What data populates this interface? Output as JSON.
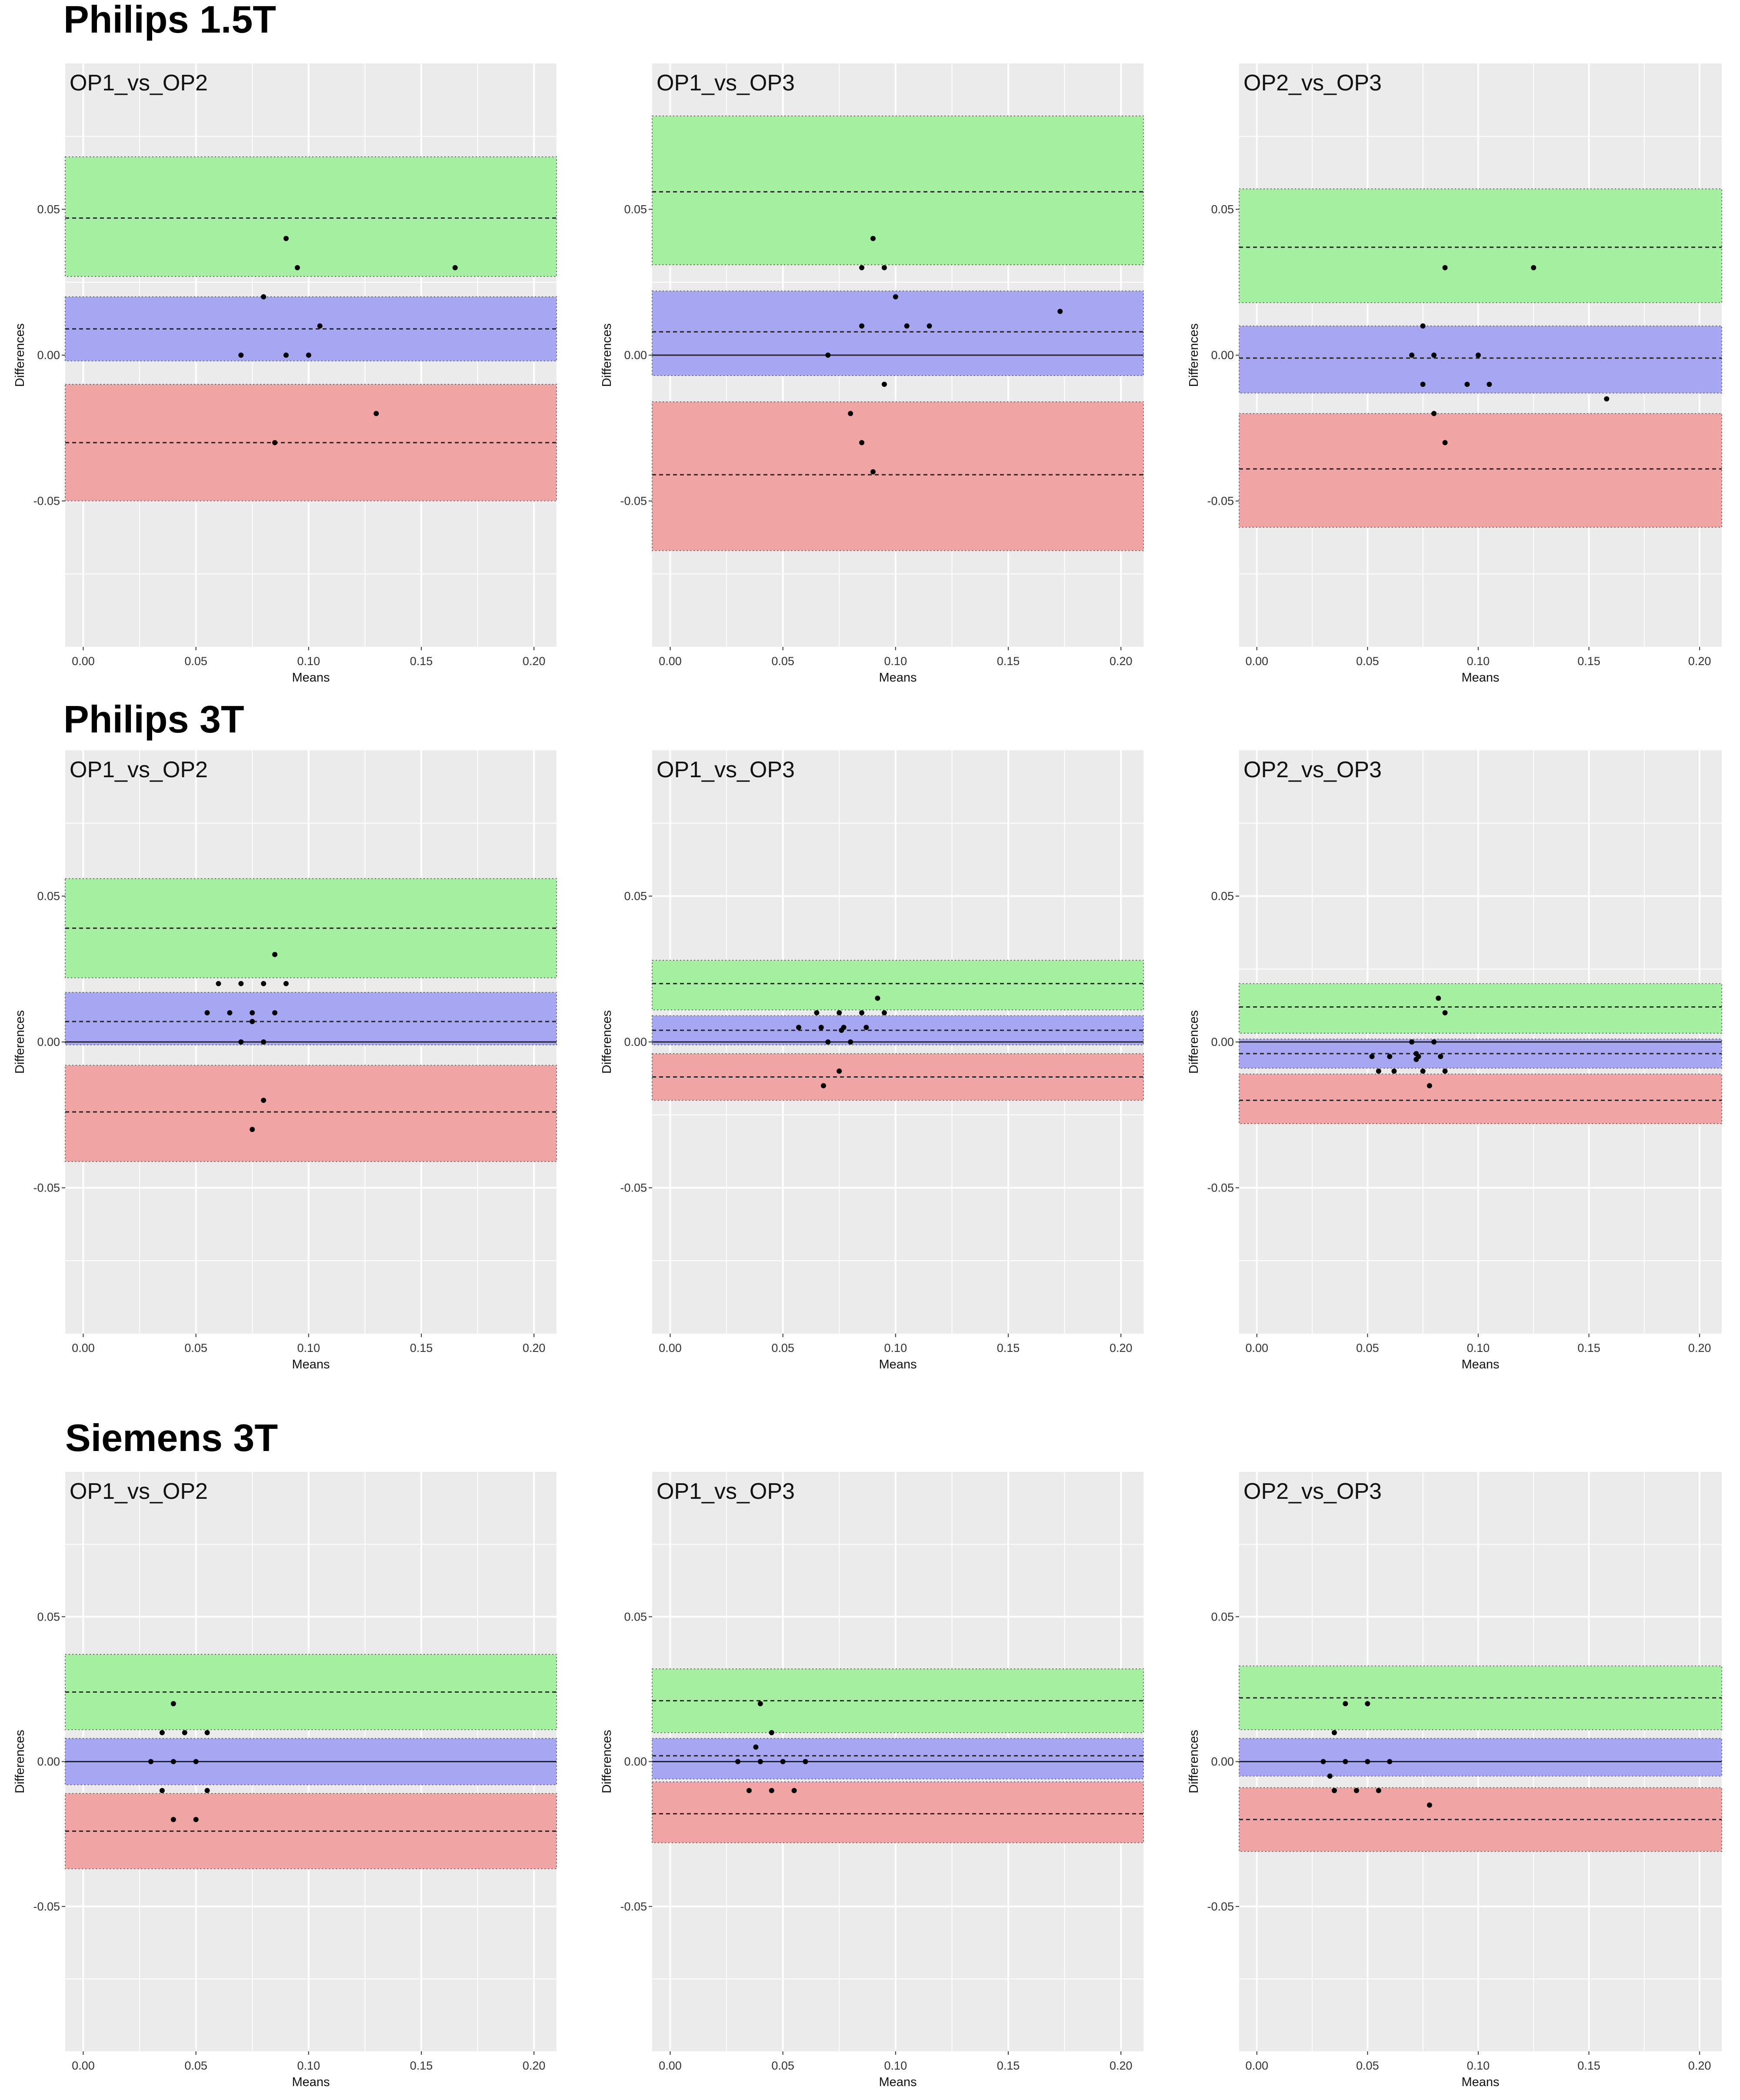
{
  "sections": [
    {
      "title": "Philips 1.5T"
    },
    {
      "title": "Philips 3T"
    },
    {
      "title": "Siemens 3T"
    }
  ],
  "colors": {
    "panel_bg": "#ebebeb",
    "grid": "#ffffff",
    "upper_band": "#a4f0a0",
    "mean_band": "#a6a6f2",
    "lower_band": "#f0a4a4",
    "point": "#000000"
  },
  "chart_data": [
    {
      "type": "scatter",
      "section": "Philips 1.5T",
      "title": "OP1_vs_OP2",
      "xlabel": "Means",
      "ylabel": "Differences",
      "xlim": [
        -0.008,
        0.21
      ],
      "ylim": [
        -0.1,
        0.1
      ],
      "xticks": [
        "0.00",
        "0.05",
        "0.10",
        "0.15",
        "0.20"
      ],
      "yticks": [
        "0.05",
        "0.00",
        "-0.05"
      ],
      "mean_band": [
        -0.002,
        0.02
      ],
      "mean_diff": 0.009,
      "upper_band": [
        0.027,
        0.068
      ],
      "upper_loa": 0.047,
      "lower_band": [
        -0.05,
        -0.01
      ],
      "lower_loa": -0.03,
      "zero_line": false,
      "points": {
        "x": [
          0.07,
          0.08,
          0.085,
          0.09,
          0.09,
          0.095,
          0.1,
          0.105,
          0.13,
          0.165
        ],
        "y": [
          0.0,
          0.02,
          -0.03,
          0.04,
          0.0,
          0.03,
          0.0,
          0.01,
          -0.02,
          0.03
        ]
      }
    },
    {
      "type": "scatter",
      "section": "Philips 1.5T",
      "title": "OP1_vs_OP3",
      "xlabel": "Means",
      "ylabel": "Differences",
      "xlim": [
        -0.008,
        0.21
      ],
      "ylim": [
        -0.1,
        0.1
      ],
      "xticks": [
        "0.00",
        "0.05",
        "0.10",
        "0.15",
        "0.20"
      ],
      "yticks": [
        "0.05",
        "0.00",
        "-0.05"
      ],
      "mean_band": [
        -0.007,
        0.022
      ],
      "mean_diff": 0.008,
      "upper_band": [
        0.031,
        0.082
      ],
      "upper_loa": 0.056,
      "lower_band": [
        -0.067,
        -0.016
      ],
      "lower_loa": -0.041,
      "zero_line": true,
      "points": {
        "x": [
          0.07,
          0.08,
          0.085,
          0.085,
          0.085,
          0.09,
          0.09,
          0.095,
          0.095,
          0.1,
          0.105,
          0.115,
          0.173
        ],
        "y": [
          0.0,
          -0.02,
          0.03,
          0.01,
          -0.03,
          0.04,
          -0.04,
          0.03,
          -0.01,
          0.02,
          0.01,
          0.01,
          0.015
        ]
      }
    },
    {
      "type": "scatter",
      "section": "Philips 1.5T",
      "title": "OP2_vs_OP3",
      "xlabel": "Means",
      "ylabel": "Differences",
      "xlim": [
        -0.008,
        0.21
      ],
      "ylim": [
        -0.1,
        0.1
      ],
      "xticks": [
        "0.00",
        "0.05",
        "0.10",
        "0.15",
        "0.20"
      ],
      "yticks": [
        "0.05",
        "0.00",
        "-0.05"
      ],
      "mean_band": [
        -0.013,
        0.01
      ],
      "mean_diff": -0.001,
      "upper_band": [
        0.018,
        0.057
      ],
      "upper_loa": 0.037,
      "lower_band": [
        -0.059,
        -0.02
      ],
      "lower_loa": -0.039,
      "zero_line": false,
      "points": {
        "x": [
          0.07,
          0.075,
          0.075,
          0.08,
          0.08,
          0.085,
          0.085,
          0.095,
          0.1,
          0.105,
          0.125,
          0.158
        ],
        "y": [
          0.0,
          0.01,
          -0.01,
          0.0,
          -0.02,
          0.03,
          -0.03,
          -0.01,
          0.0,
          -0.01,
          0.03,
          -0.015
        ]
      }
    },
    {
      "type": "scatter",
      "section": "Philips 3T",
      "title": "OP1_vs_OP2",
      "xlabel": "Means",
      "ylabel": "Differences",
      "xlim": [
        -0.008,
        0.21
      ],
      "ylim": [
        -0.1,
        0.1
      ],
      "xticks": [
        "0.00",
        "0.05",
        "0.10",
        "0.15",
        "0.20"
      ],
      "yticks": [
        "0.05",
        "0.00",
        "-0.05"
      ],
      "mean_band": [
        -0.001,
        0.017
      ],
      "mean_diff": 0.007,
      "upper_band": [
        0.022,
        0.056
      ],
      "upper_loa": 0.039,
      "lower_band": [
        -0.041,
        -0.008
      ],
      "lower_loa": -0.024,
      "zero_line": true,
      "points": {
        "x": [
          0.055,
          0.06,
          0.065,
          0.07,
          0.07,
          0.075,
          0.075,
          0.08,
          0.08,
          0.08,
          0.085,
          0.085,
          0.09,
          0.075
        ],
        "y": [
          0.01,
          0.02,
          0.01,
          0.02,
          0.0,
          0.01,
          0.007,
          0.02,
          0.0,
          -0.02,
          0.03,
          0.01,
          0.02,
          -0.03
        ]
      }
    },
    {
      "type": "scatter",
      "section": "Philips 3T",
      "title": "OP1_vs_OP3",
      "xlabel": "Means",
      "ylabel": "Differences",
      "xlim": [
        -0.008,
        0.21
      ],
      "ylim": [
        -0.1,
        0.1
      ],
      "xticks": [
        "0.00",
        "0.05",
        "0.10",
        "0.15",
        "0.20"
      ],
      "yticks": [
        "0.05",
        "0.00",
        "-0.05"
      ],
      "mean_band": [
        -0.001,
        0.009
      ],
      "mean_diff": 0.004,
      "upper_band": [
        0.011,
        0.028
      ],
      "upper_loa": 0.02,
      "lower_band": [
        -0.02,
        -0.004
      ],
      "lower_loa": -0.012,
      "zero_line": true,
      "points": {
        "x": [
          0.057,
          0.065,
          0.067,
          0.068,
          0.07,
          0.075,
          0.075,
          0.076,
          0.077,
          0.08,
          0.085,
          0.087,
          0.092,
          0.095
        ],
        "y": [
          0.005,
          0.01,
          0.005,
          -0.015,
          0.0,
          0.01,
          -0.01,
          0.004,
          0.005,
          0.0,
          0.01,
          0.005,
          0.015,
          0.01
        ]
      }
    },
    {
      "type": "scatter",
      "section": "Philips 3T",
      "title": "OP2_vs_OP3",
      "xlabel": "Means",
      "ylabel": "Differences",
      "xlim": [
        -0.008,
        0.21
      ],
      "ylim": [
        -0.1,
        0.1
      ],
      "xticks": [
        "0.00",
        "0.05",
        "0.10",
        "0.15",
        "0.20"
      ],
      "yticks": [
        "0.05",
        "0.00",
        "-0.05"
      ],
      "mean_band": [
        -0.009,
        0.001
      ],
      "mean_diff": -0.004,
      "upper_band": [
        0.003,
        0.02
      ],
      "upper_loa": 0.012,
      "lower_band": [
        -0.028,
        -0.011
      ],
      "lower_loa": -0.02,
      "zero_line": true,
      "points": {
        "x": [
          0.052,
          0.055,
          0.06,
          0.062,
          0.07,
          0.072,
          0.072,
          0.073,
          0.075,
          0.078,
          0.08,
          0.082,
          0.083,
          0.085,
          0.085
        ],
        "y": [
          -0.005,
          -0.01,
          -0.005,
          -0.01,
          0.0,
          -0.004,
          -0.006,
          -0.005,
          -0.01,
          -0.015,
          0.0,
          0.015,
          -0.005,
          0.01,
          -0.01
        ]
      }
    },
    {
      "type": "scatter",
      "section": "Siemens 3T",
      "title": "OP1_vs_OP2",
      "xlabel": "Means",
      "ylabel": "Differences",
      "xlim": [
        -0.008,
        0.21
      ],
      "ylim": [
        -0.1,
        0.1
      ],
      "xticks": [
        "0.00",
        "0.05",
        "0.10",
        "0.15",
        "0.20"
      ],
      "yticks": [
        "0.05",
        "0.00",
        "-0.05"
      ],
      "mean_band": [
        -0.008,
        0.008
      ],
      "mean_diff": 0.0,
      "upper_band": [
        0.011,
        0.037
      ],
      "upper_loa": 0.024,
      "lower_band": [
        -0.037,
        -0.011
      ],
      "lower_loa": -0.024,
      "zero_line": true,
      "points": {
        "x": [
          0.03,
          0.035,
          0.035,
          0.04,
          0.04,
          0.04,
          0.045,
          0.05,
          0.05,
          0.055,
          0.055
        ],
        "y": [
          0.0,
          0.01,
          -0.01,
          0.02,
          0.0,
          -0.02,
          0.01,
          0.0,
          -0.02,
          0.01,
          -0.01
        ]
      }
    },
    {
      "type": "scatter",
      "section": "Siemens 3T",
      "title": "OP1_vs_OP3",
      "xlabel": "Means",
      "ylabel": "Differences",
      "xlim": [
        -0.008,
        0.21
      ],
      "ylim": [
        -0.1,
        0.1
      ],
      "xticks": [
        "0.00",
        "0.05",
        "0.10",
        "0.15",
        "0.20"
      ],
      "yticks": [
        "0.05",
        "0.00",
        "-0.05"
      ],
      "mean_band": [
        -0.006,
        0.008
      ],
      "mean_diff": 0.002,
      "upper_band": [
        0.01,
        0.032
      ],
      "upper_loa": 0.021,
      "lower_band": [
        -0.028,
        -0.007
      ],
      "lower_loa": -0.018,
      "zero_line": true,
      "points": {
        "x": [
          0.03,
          0.035,
          0.038,
          0.04,
          0.04,
          0.045,
          0.045,
          0.05,
          0.055,
          0.06
        ],
        "y": [
          0.0,
          -0.01,
          0.005,
          0.02,
          0.0,
          0.01,
          -0.01,
          0.0,
          -0.01,
          0.0
        ]
      }
    },
    {
      "type": "scatter",
      "section": "Siemens 3T",
      "title": "OP2_vs_OP3",
      "xlabel": "Means",
      "ylabel": "Differences",
      "xlim": [
        -0.008,
        0.21
      ],
      "ylim": [
        -0.1,
        0.1
      ],
      "xticks": [
        "0.00",
        "0.05",
        "0.10",
        "0.15",
        "0.20"
      ],
      "yticks": [
        "0.05",
        "0.00",
        "-0.05"
      ],
      "mean_band": [
        -0.005,
        0.008
      ],
      "mean_diff": 0.0,
      "upper_band": [
        0.011,
        0.033
      ],
      "upper_loa": 0.022,
      "lower_band": [
        -0.031,
        -0.009
      ],
      "lower_loa": -0.02,
      "zero_line": true,
      "points": {
        "x": [
          0.03,
          0.033,
          0.035,
          0.035,
          0.04,
          0.04,
          0.045,
          0.05,
          0.05,
          0.055,
          0.06,
          0.078
        ],
        "y": [
          0.0,
          -0.005,
          0.01,
          -0.01,
          0.02,
          0.0,
          -0.01,
          0.02,
          0.0,
          -0.01,
          0.0,
          -0.015
        ]
      }
    }
  ]
}
